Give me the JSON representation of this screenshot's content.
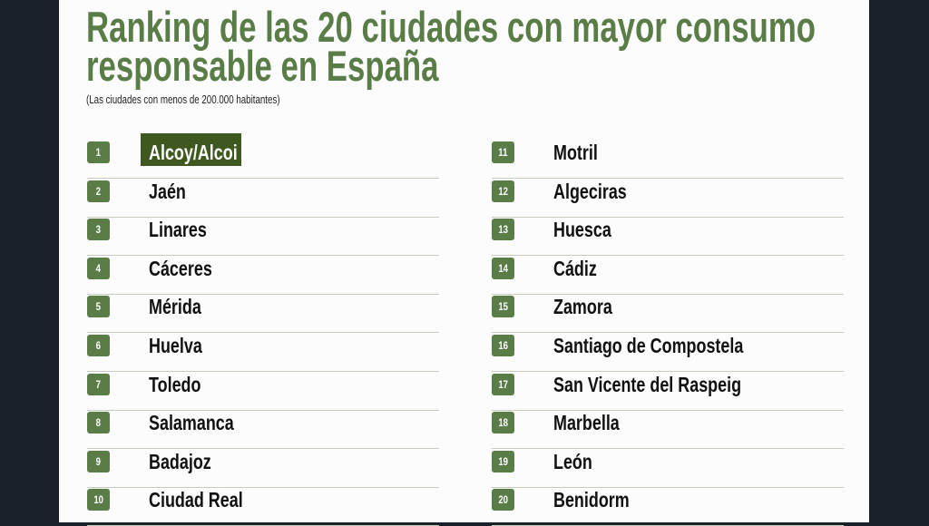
{
  "title": "Ranking de las 20 ciudades con mayor consumo responsable en España",
  "title_line1": "Ranking de las 20 ciudades con mayor consumo",
  "title_line2": "responsable en España",
  "subtitle": "(Las ciudades con menos de 200.000 habitantes)",
  "colors": {
    "accent": "#5a7d48",
    "highlight": "#3e5820",
    "background": "#1b2129"
  },
  "ranking": [
    {
      "rank": "1",
      "city": "Alcoy/Alcoi"
    },
    {
      "rank": "2",
      "city": "Jaén"
    },
    {
      "rank": "3",
      "city": "Linares"
    },
    {
      "rank": "4",
      "city": "Cáceres"
    },
    {
      "rank": "5",
      "city": "Mérida"
    },
    {
      "rank": "6",
      "city": "Huelva"
    },
    {
      "rank": "7",
      "city": "Toledo"
    },
    {
      "rank": "8",
      "city": "Salamanca"
    },
    {
      "rank": "9",
      "city": "Badajoz"
    },
    {
      "rank": "10",
      "city": "Ciudad Real"
    },
    {
      "rank": "11",
      "city": "Motril"
    },
    {
      "rank": "12",
      "city": "Algeciras"
    },
    {
      "rank": "13",
      "city": "Huesca"
    },
    {
      "rank": "14",
      "city": "Cádiz"
    },
    {
      "rank": "15",
      "city": "Zamora"
    },
    {
      "rank": "16",
      "city": "Santiago de Compostela"
    },
    {
      "rank": "17",
      "city": "San Vicente del Raspeig"
    },
    {
      "rank": "18",
      "city": "Marbella"
    },
    {
      "rank": "19",
      "city": "León"
    },
    {
      "rank": "20",
      "city": "Benidorm"
    }
  ]
}
